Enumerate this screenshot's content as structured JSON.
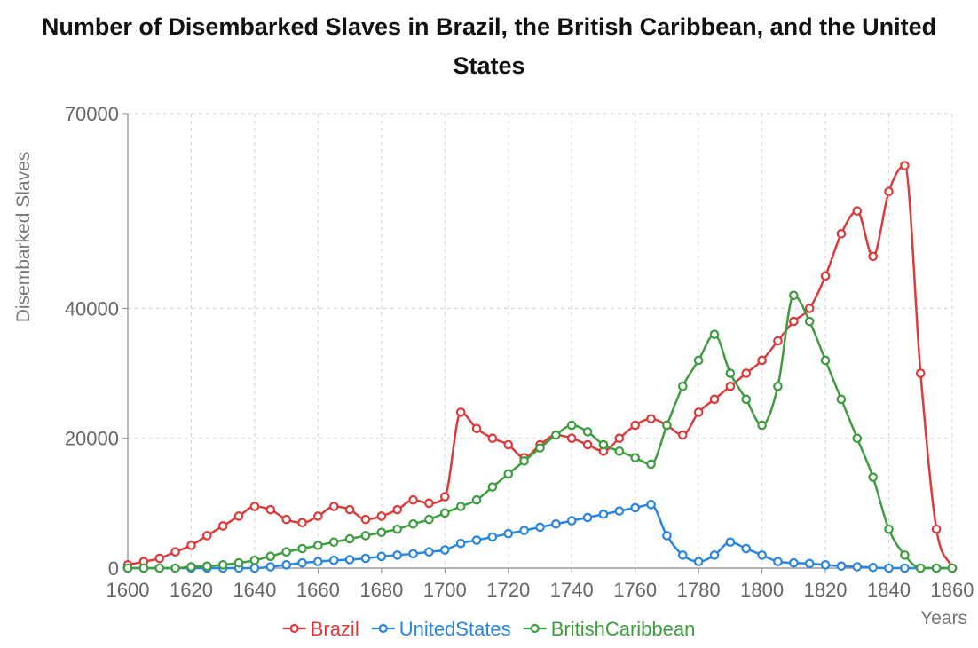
{
  "chart_data": {
    "type": "line",
    "title": "Number of Disembarked Slaves in Brazil, the British Caribbean, and the United States",
    "xlabel": "Years",
    "ylabel": "Disembarked Slaves",
    "xlim": [
      1600,
      1860
    ],
    "ylim": [
      0,
      70000
    ],
    "x_ticks": [
      1600,
      1620,
      1640,
      1660,
      1680,
      1700,
      1720,
      1740,
      1760,
      1780,
      1800,
      1820,
      1840,
      1860
    ],
    "y_ticks": [
      0,
      20000,
      40000,
      70000
    ],
    "grid": true,
    "legend_position": "bottom",
    "x": [
      1600,
      1605,
      1610,
      1615,
      1620,
      1625,
      1630,
      1635,
      1640,
      1645,
      1650,
      1655,
      1660,
      1665,
      1670,
      1675,
      1680,
      1685,
      1690,
      1695,
      1700,
      1705,
      1710,
      1715,
      1720,
      1725,
      1730,
      1735,
      1740,
      1745,
      1750,
      1755,
      1760,
      1765,
      1770,
      1775,
      1780,
      1785,
      1790,
      1795,
      1800,
      1805,
      1810,
      1815,
      1820,
      1825,
      1830,
      1835,
      1840,
      1845,
      1850,
      1855,
      1860
    ],
    "series": [
      {
        "name": "Brazil",
        "color": "#dc3b3b",
        "values": [
          500,
          1000,
          1500,
          2500,
          3500,
          5000,
          6500,
          8000,
          9500,
          9000,
          7500,
          7000,
          8000,
          9500,
          9000,
          7500,
          8000,
          9000,
          10500,
          10000,
          11000,
          24000,
          21500,
          20000,
          19000,
          17000,
          19000,
          20500,
          20000,
          19000,
          18000,
          20000,
          22000,
          23000,
          22000,
          20500,
          24000,
          26000,
          28000,
          30000,
          32000,
          35000,
          38000,
          40000,
          45000,
          51500,
          55000,
          48000,
          58000,
          62000,
          30000,
          6000,
          0
        ]
      },
      {
        "name": "UnitedStates",
        "color": "#2a85e0",
        "values": [
          0,
          0,
          0,
          0,
          0,
          0,
          0,
          0,
          0,
          200,
          500,
          800,
          1000,
          1200,
          1300,
          1500,
          1800,
          2000,
          2200,
          2500,
          2800,
          3800,
          4300,
          4800,
          5300,
          5800,
          6300,
          6800,
          7300,
          7800,
          8300,
          8800,
          9300,
          9800,
          5000,
          2000,
          1000,
          2000,
          4000,
          3000,
          2000,
          1000,
          800,
          700,
          500,
          300,
          200,
          100,
          0,
          0,
          0,
          0,
          0
        ]
      },
      {
        "name": "BritishCaribbean",
        "color": "#3e9d3e",
        "values": [
          0,
          0,
          0,
          0,
          200,
          300,
          500,
          800,
          1200,
          1800,
          2500,
          3000,
          3500,
          4000,
          4500,
          5000,
          5500,
          6000,
          6800,
          7500,
          8500,
          9500,
          10500,
          12500,
          14500,
          16500,
          18500,
          20500,
          22000,
          21000,
          19000,
          18000,
          17000,
          16000,
          22000,
          28000,
          32000,
          36000,
          30000,
          26000,
          22000,
          28000,
          42000,
          38000,
          32000,
          26000,
          20000,
          14000,
          6000,
          2000,
          0,
          0,
          0
        ]
      }
    ]
  }
}
